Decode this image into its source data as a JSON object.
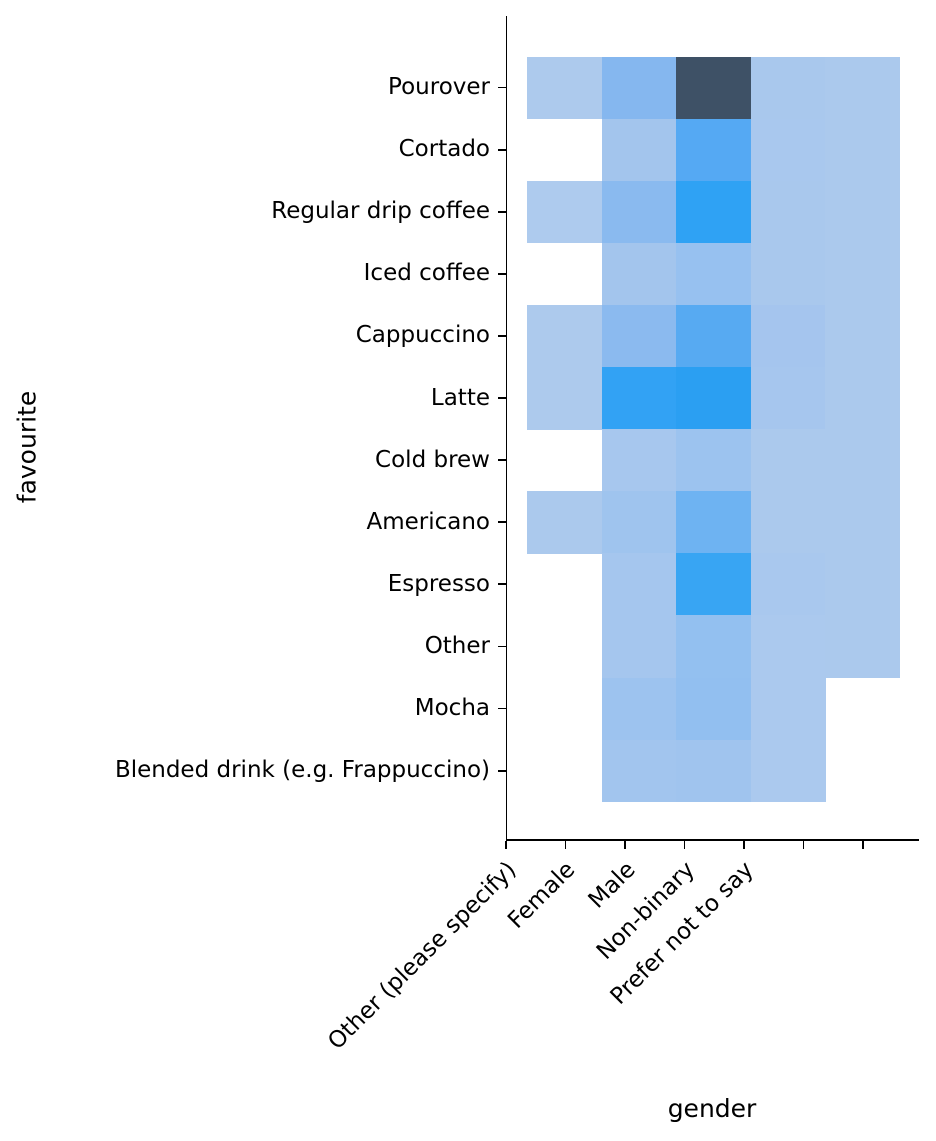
{
  "chart_data": {
    "type": "heatmap",
    "title": "",
    "xlabel": "gender",
    "ylabel": "favourite",
    "x_categories": [
      "Other (please specify)",
      "Female",
      "Male",
      "Non-binary",
      "Prefer not to say"
    ],
    "y_categories": [
      "Pourover",
      "Cortado",
      "Regular drip coffee",
      "Iced coffee",
      "Cappuccino",
      "Latte",
      "Cold brew",
      "Americano",
      "Espresso",
      "Other",
      "Mocha",
      "Blended drink (e.g. Frappuccino)"
    ],
    "values": [
      [
        1,
        6,
        25,
        1,
        1
      ],
      [
        0,
        2,
        10,
        1,
        1
      ],
      [
        1,
        5,
        13,
        1,
        1
      ],
      [
        0,
        2,
        4,
        1,
        1
      ],
      [
        1,
        5,
        10,
        2,
        1
      ],
      [
        1,
        13,
        14,
        2,
        1
      ],
      [
        0,
        2,
        3,
        1,
        1
      ],
      [
        1,
        3,
        8,
        1,
        1
      ],
      [
        0,
        2,
        12,
        1,
        1
      ],
      [
        0,
        2,
        4,
        1,
        1
      ],
      [
        0,
        3,
        4,
        1,
        0
      ],
      [
        0,
        2,
        2,
        1,
        0
      ]
    ],
    "colors": [
      [
        "#adcaed",
        "#85b7ef",
        "#3e5166",
        "#a9c8ed",
        "#abc9ed"
      ],
      [
        null,
        "#a3c5ed",
        "#55a9f3",
        "#a9c8ee",
        "#abc9ed"
      ],
      [
        "#aecbee",
        "#8abaef",
        "#2fa2f4",
        "#a9c8ed",
        "#abc9ed"
      ],
      [
        null,
        "#a3c5ed",
        "#97c1f0",
        "#a9c8ed",
        "#abc9ed"
      ],
      [
        "#adcaed",
        "#8bbaef",
        "#57aaf2",
        "#a5c5ee",
        "#abc9ed"
      ],
      [
        "#adcaed",
        "#32a2f4",
        "#2b9ff2",
        "#a6c6ee",
        "#abc9ed"
      ],
      [
        null,
        "#a7c7ee",
        "#9cc3ef",
        "#abc9ed",
        "#abc9ed"
      ],
      [
        "#abc9ed",
        "#9fc4ee",
        "#6eb3f2",
        "#abc9ed",
        "#abc9ed"
      ],
      [
        null,
        "#a5c6ee",
        "#38a5f3",
        "#a9c8ee",
        "#abc9ed"
      ],
      [
        null,
        "#a5c6ee",
        "#93c0f0",
        "#abc9ee",
        "#abc9ed"
      ],
      [
        null,
        "#9dc3ef",
        "#92bff0",
        "#abc9ee",
        null
      ],
      [
        null,
        "#a2c5ee",
        "#a0c4ee",
        "#abc9ee",
        null
      ]
    ],
    "colormap": {
      "low": "#abc9ed",
      "mid": "#2da1f3",
      "high": "#3e5166",
      "empty": "#ffffff"
    },
    "legend": "none",
    "grid": false
  },
  "axes": {
    "spine_color": "#000000",
    "tick_color": "#000000",
    "text_color": "#000000",
    "background": "#ffffff"
  }
}
